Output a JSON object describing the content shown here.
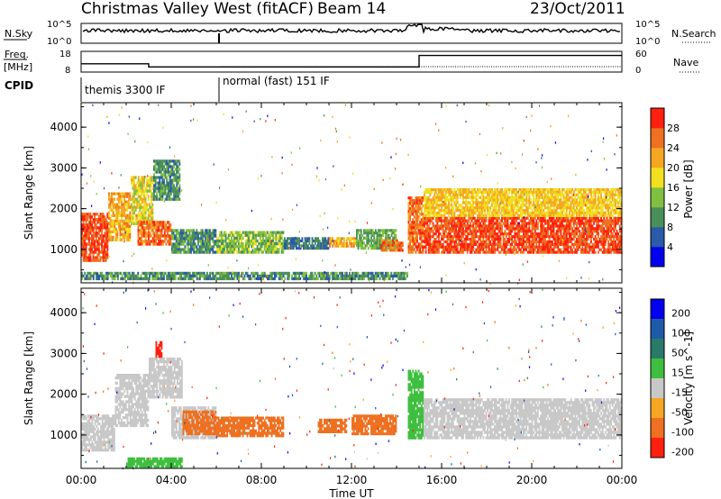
{
  "header": {
    "station": "Christmas Valley West (fitACF)",
    "beam": "Beam 14",
    "date": "23/Oct/2011"
  },
  "noise_panel": {
    "left_label": "N.Sky",
    "right_label": "N.Search",
    "left_ticks": [
      "10^5",
      "10^0"
    ],
    "right_ticks": [
      "10^5",
      "10^0"
    ],
    "left_series_color": "#000000",
    "right_series_style": "dotted"
  },
  "freq_panel": {
    "left_label_1": "Freq.",
    "left_label_2": "[MHz]",
    "right_label": "Nave",
    "left_ticks": [
      "18",
      "8"
    ],
    "right_ticks": [
      "60",
      "0"
    ],
    "cpid_label": "CPID",
    "modes": [
      {
        "label": "themis 3300 IF",
        "start_hour": 0,
        "end_hour": 6
      },
      {
        "label": "normal (fast) 151 IF",
        "start_hour": 6,
        "end_hour": 24
      }
    ],
    "freq_steps": [
      {
        "start_hour": 0,
        "end_hour": 3,
        "freq_mhz": 12
      },
      {
        "start_hour": 3,
        "end_hour": 6,
        "freq_mhz": 10.5
      },
      {
        "start_hour": 6,
        "end_hour": 15,
        "freq_mhz": 10.5
      },
      {
        "start_hour": 15,
        "end_hour": 24,
        "freq_mhz": 16
      }
    ]
  },
  "axes": {
    "x_label": "Time UT",
    "x_ticks": [
      "00:00",
      "04:00",
      "08:00",
      "12:00",
      "16:00",
      "20:00",
      "00:00"
    ],
    "x_range_hours": [
      0,
      24
    ],
    "y_label": "Slant Range [km]",
    "y_ticks": [
      "1000",
      "2000",
      "3000",
      "4000"
    ],
    "y_range_km": [
      180,
      4600
    ]
  },
  "chart_data": [
    {
      "type": "heatmap",
      "title": "",
      "xlabel": "Time UT",
      "ylabel": "Slant Range [km]",
      "colorbar_label": "Power [dB]",
      "colorbar_ticks": [
        "4",
        "8",
        "12",
        "16",
        "20",
        "24",
        "28"
      ],
      "colorbar_colors": [
        "#0000ee",
        "#2a5aa8",
        "#4a8f5a",
        "#7fc040",
        "#f0e020",
        "#f5a623",
        "#ee7020",
        "#ff2010"
      ],
      "regions": [
        {
          "x0": 0.0,
          "x1": 1.2,
          "y0": 700,
          "y1": 1900,
          "value": 28
        },
        {
          "x0": 1.2,
          "x1": 2.2,
          "y0": 1200,
          "y1": 2400,
          "value": 22
        },
        {
          "x0": 2.2,
          "x1": 3.2,
          "y0": 1600,
          "y1": 2800,
          "value": 18
        },
        {
          "x0": 3.2,
          "x1": 4.4,
          "y0": 2200,
          "y1": 3200,
          "value": 10
        },
        {
          "x0": 2.5,
          "x1": 4.0,
          "y0": 1100,
          "y1": 1700,
          "value": 26
        },
        {
          "x0": 4.0,
          "x1": 6.0,
          "y0": 900,
          "y1": 1500,
          "value": 10
        },
        {
          "x0": 6.0,
          "x1": 9.0,
          "y0": 900,
          "y1": 1450,
          "value": 14
        },
        {
          "x0": 9.0,
          "x1": 11.0,
          "y0": 1000,
          "y1": 1300,
          "value": 8
        },
        {
          "x0": 11.0,
          "x1": 12.2,
          "y0": 1050,
          "y1": 1300,
          "value": 22
        },
        {
          "x0": 12.2,
          "x1": 14.0,
          "y0": 1000,
          "y1": 1500,
          "value": 12
        },
        {
          "x0": 13.3,
          "x1": 14.3,
          "y0": 950,
          "y1": 1250,
          "value": 26
        },
        {
          "x0": 14.5,
          "x1": 15.2,
          "y0": 900,
          "y1": 2300,
          "value": 26
        },
        {
          "x0": 15.2,
          "x1": 24.0,
          "y0": 900,
          "y1": 1800,
          "value": 28
        },
        {
          "x0": 15.2,
          "x1": 24.0,
          "y0": 1800,
          "y1": 2500,
          "value": 20
        },
        {
          "x0": 0.0,
          "x1": 14.5,
          "y0": 250,
          "y1": 450,
          "value": 10
        }
      ]
    },
    {
      "type": "heatmap",
      "title": "",
      "xlabel": "Time UT",
      "ylabel": "Slant Range [km]",
      "colorbar_label": "Velocity [m s^-1]",
      "colorbar_ticks": [
        "200",
        "100",
        "50",
        "15",
        "-15",
        "-50",
        "-100",
        "-200"
      ],
      "colorbar_colors": [
        "#0000ee",
        "#1e5aa8",
        "#2a7a6a",
        "#3fbf3f",
        "#c8c8c8",
        "#f5a623",
        "#ee7020",
        "#ff2010"
      ],
      "regions": [
        {
          "x0": 0.0,
          "x1": 1.5,
          "y0": 600,
          "y1": 1500,
          "value": 0
        },
        {
          "x0": 1.5,
          "x1": 3.0,
          "y0": 1200,
          "y1": 2500,
          "value": 0
        },
        {
          "x0": 3.0,
          "x1": 4.5,
          "y0": 1900,
          "y1": 2900,
          "value": 0
        },
        {
          "x0": 3.3,
          "x1": 3.6,
          "y0": 2900,
          "y1": 3300,
          "value": -200
        },
        {
          "x0": 4.0,
          "x1": 6.0,
          "y0": 900,
          "y1": 1700,
          "value": 0
        },
        {
          "x0": 4.5,
          "x1": 6.0,
          "y0": 1000,
          "y1": 1600,
          "value": -60
        },
        {
          "x0": 6.0,
          "x1": 9.0,
          "y0": 950,
          "y1": 1450,
          "value": -60
        },
        {
          "x0": 10.5,
          "x1": 11.8,
          "y0": 1050,
          "y1": 1400,
          "value": -60
        },
        {
          "x0": 12.0,
          "x1": 14.0,
          "y0": 1000,
          "y1": 1500,
          "value": -60
        },
        {
          "x0": 14.5,
          "x1": 15.2,
          "y0": 900,
          "y1": 2600,
          "value": 40
        },
        {
          "x0": 15.2,
          "x1": 24.0,
          "y0": 900,
          "y1": 1900,
          "value": 0
        },
        {
          "x0": 2.0,
          "x1": 4.5,
          "y0": 200,
          "y1": 450,
          "value": 40
        }
      ]
    }
  ]
}
